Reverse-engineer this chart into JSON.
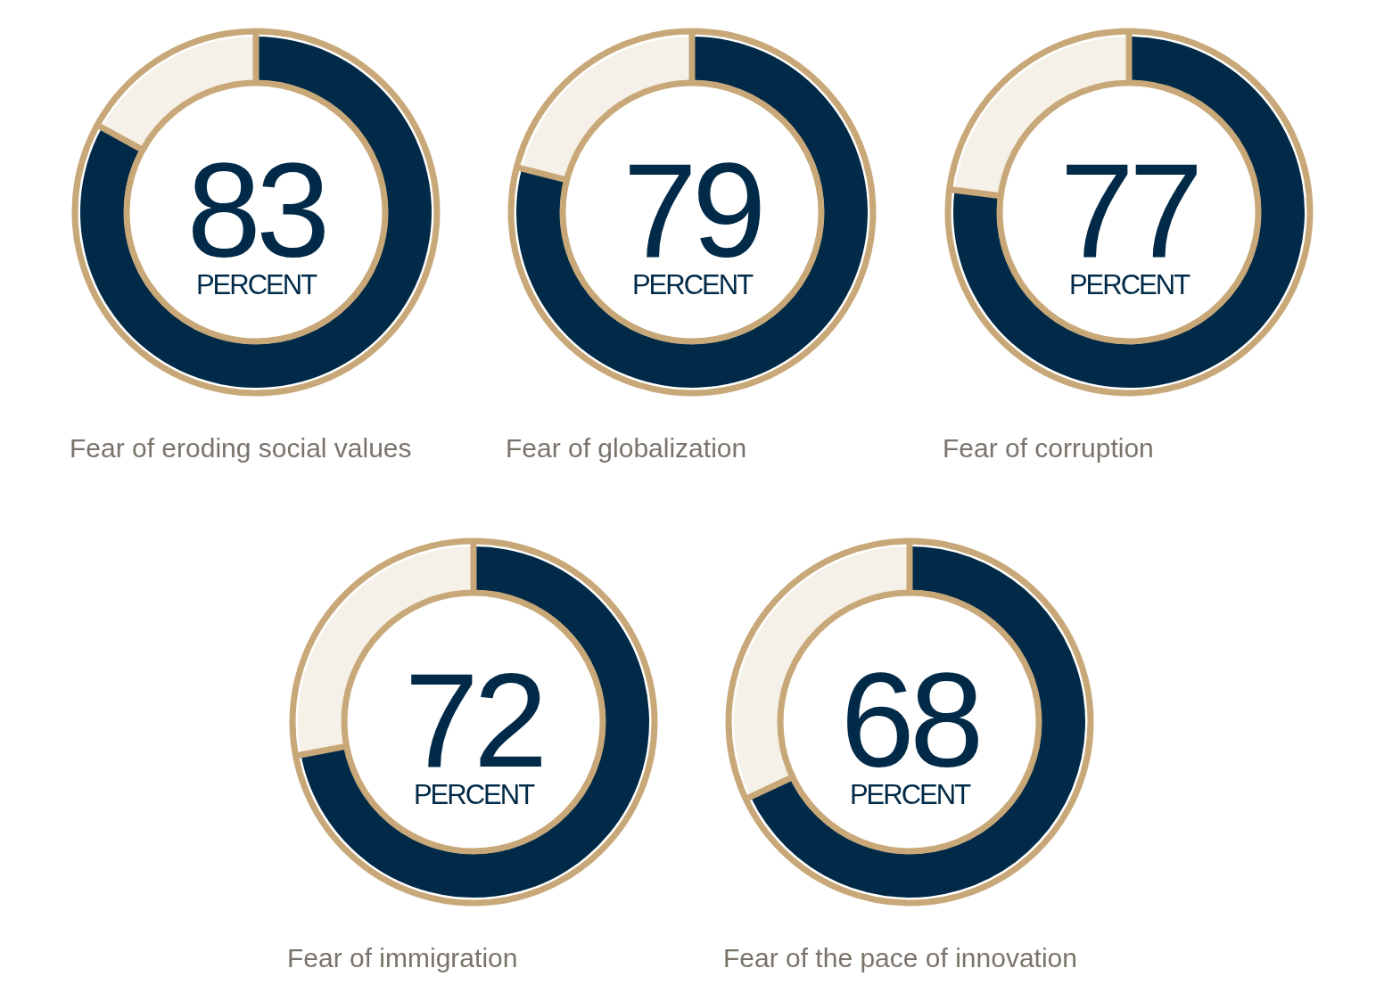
{
  "chart_data": [
    {
      "type": "donut",
      "title": "Fear of eroding social values",
      "categories": [
        null,
        null
      ],
      "values": [
        83,
        17
      ],
      "colors": [
        "#002a48",
        "#f6f1e8"
      ],
      "value_labels": [
        "83",
        null
      ],
      "annotations": [
        "PERCENT"
      ]
    },
    {
      "type": "donut",
      "title": "Fear of globalization",
      "categories": [
        null,
        null
      ],
      "values": [
        79,
        21
      ],
      "colors": [
        "#002a48",
        "#f6f1e8"
      ],
      "value_labels": [
        "79",
        null
      ],
      "annotations": [
        "PERCENT"
      ]
    },
    {
      "type": "donut",
      "title": "Fear of corruption",
      "categories": [
        null,
        null
      ],
      "values": [
        77,
        23
      ],
      "colors": [
        "#002a48",
        "#f6f1e8"
      ],
      "value_labels": [
        "77",
        null
      ],
      "annotations": [
        "PERCENT"
      ]
    },
    {
      "type": "donut",
      "title": "Fear of immigration",
      "categories": [
        null,
        null
      ],
      "values": [
        72,
        28
      ],
      "colors": [
        "#002a48",
        "#f6f1e8"
      ],
      "value_labels": [
        "72",
        null
      ],
      "annotations": [
        "PERCENT"
      ]
    },
    {
      "type": "donut",
      "title": "Fear of the pace of innovation",
      "categories": [
        null,
        null
      ],
      "values": [
        68,
        32
      ],
      "colors": [
        "#002a48",
        "#f6f1e8"
      ],
      "value_labels": [
        "68",
        null
      ],
      "annotations": [
        "PERCENT"
      ]
    }
  ]
}
